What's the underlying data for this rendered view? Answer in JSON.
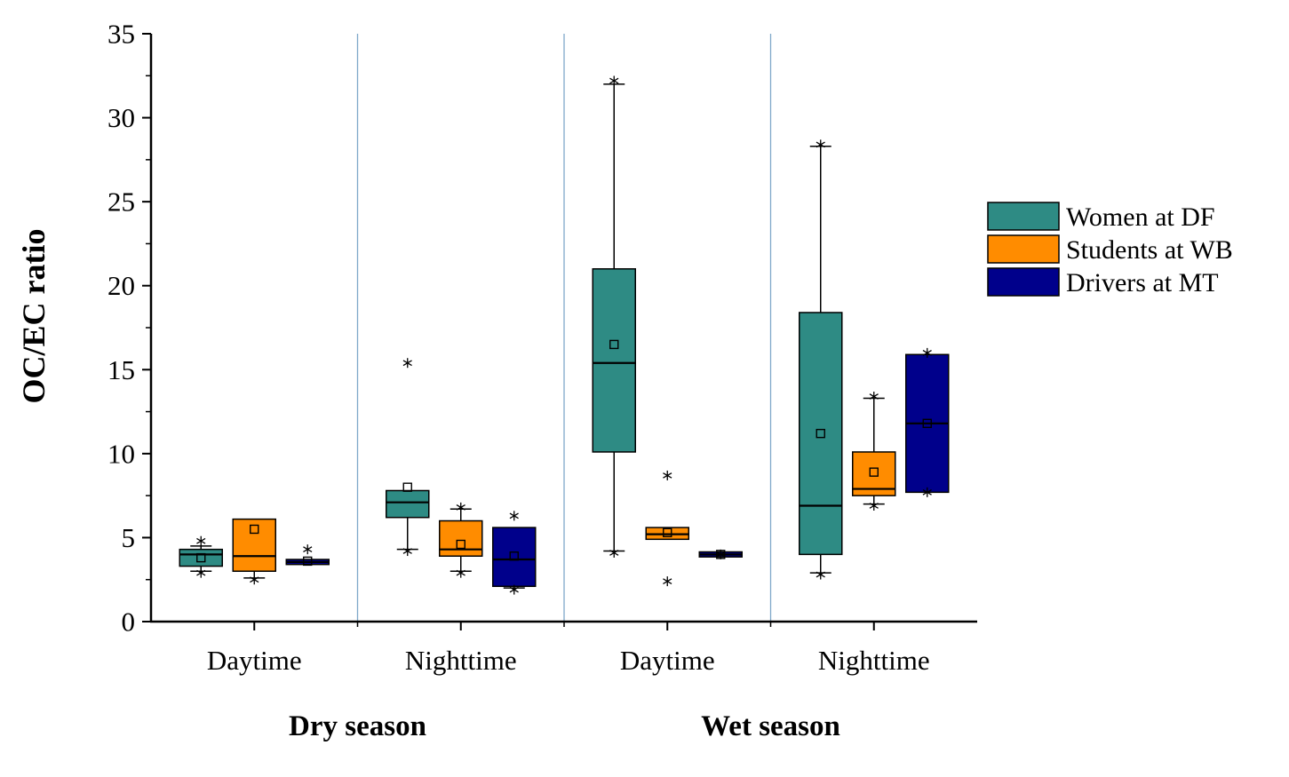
{
  "chart_data": {
    "type": "boxplot",
    "title": "",
    "ylabel": "OC/EC ratio",
    "ylim": [
      0,
      35
    ],
    "yticks": [
      0,
      5,
      10,
      15,
      20,
      25,
      30,
      35
    ],
    "y_minor_step": 2.5,
    "x_groups": [
      "Daytime",
      "Nighttime",
      "Daytime",
      "Nighttime"
    ],
    "season_labels": [
      "Dry season",
      "Wet season"
    ],
    "separator_color": "#7ea8c9",
    "legend_position": "right-outside",
    "series": [
      {
        "name": "Women at DF",
        "color": "#2e8b84",
        "boxes": [
          {
            "group": 0,
            "q1": 3.3,
            "median": 4.0,
            "q3": 4.3,
            "mean": 3.8,
            "whisker_low": 3.0,
            "whisker_high": 4.5,
            "outliers": [
              4.8,
              2.9
            ]
          },
          {
            "group": 1,
            "q1": 6.2,
            "median": 7.1,
            "q3": 7.8,
            "mean": 8.0,
            "whisker_low": 4.3,
            "whisker_high": 7.8,
            "outliers": [
              15.4,
              4.2
            ]
          },
          {
            "group": 2,
            "q1": 10.1,
            "median": 15.4,
            "q3": 21.0,
            "mean": 16.5,
            "whisker_low": 4.2,
            "whisker_high": 32.0,
            "outliers": [
              32.2,
              4.1
            ]
          },
          {
            "group": 3,
            "q1": 4.0,
            "median": 6.9,
            "q3": 18.4,
            "mean": 11.2,
            "whisker_low": 2.9,
            "whisker_high": 28.3,
            "outliers": [
              28.4,
              2.8
            ]
          }
        ]
      },
      {
        "name": "Students at WB",
        "color": "#ff8c00",
        "boxes": [
          {
            "group": 0,
            "q1": 3.0,
            "median": 3.9,
            "q3": 6.1,
            "mean": 5.5,
            "whisker_low": 2.6,
            "whisker_high": 6.1,
            "outliers": [
              2.5
            ]
          },
          {
            "group": 1,
            "q1": 3.9,
            "median": 4.3,
            "q3": 6.0,
            "mean": 4.6,
            "whisker_low": 3.0,
            "whisker_high": 6.7,
            "outliers": [
              6.8,
              2.9
            ]
          },
          {
            "group": 2,
            "q1": 4.9,
            "median": 5.2,
            "q3": 5.6,
            "mean": 5.3,
            "whisker_low": 4.9,
            "whisker_high": 5.6,
            "outliers": [
              8.7,
              2.4
            ]
          },
          {
            "group": 3,
            "q1": 7.5,
            "median": 7.9,
            "q3": 10.1,
            "mean": 8.9,
            "whisker_low": 7.0,
            "whisker_high": 13.3,
            "outliers": [
              13.4,
              6.9
            ]
          }
        ]
      },
      {
        "name": "Drivers at MT",
        "color": "#00008b",
        "boxes": [
          {
            "group": 0,
            "q1": 3.4,
            "median": 3.55,
            "q3": 3.7,
            "mean": 3.6,
            "whisker_low": 3.4,
            "whisker_high": 3.7,
            "outliers": [
              4.3
            ]
          },
          {
            "group": 1,
            "q1": 2.1,
            "median": 3.7,
            "q3": 5.6,
            "mean": 3.9,
            "whisker_low": 2.0,
            "whisker_high": 5.6,
            "outliers": [
              6.3,
              1.9
            ]
          },
          {
            "group": 2,
            "q1": 3.85,
            "median": 4.0,
            "q3": 4.15,
            "mean": 4.0,
            "whisker_low": 3.85,
            "whisker_high": 4.15,
            "outliers": [
              4.0
            ]
          },
          {
            "group": 3,
            "q1": 7.7,
            "median": 11.8,
            "q3": 15.9,
            "mean": 11.8,
            "whisker_low": 7.7,
            "whisker_high": 15.9,
            "outliers": [
              16.0,
              7.7
            ]
          }
        ]
      }
    ]
  }
}
